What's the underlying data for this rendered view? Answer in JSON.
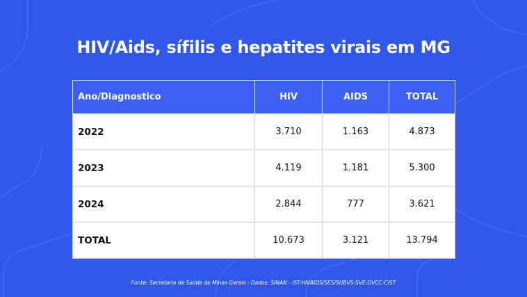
{
  "title": "HIV/Aids, sífilis e hepatites virais em MG",
  "colors": {
    "background": "#2f57ea",
    "header": "#3d60f2",
    "cell": "#ffffff",
    "decoration": "#4a6df0"
  },
  "table": {
    "headers": [
      "Ano/Diagnostico",
      "HIV",
      "AIDS",
      "TOTAL"
    ],
    "rows": [
      {
        "label": "2022",
        "hiv": "3.710",
        "aids": "1.163",
        "total": "4.873"
      },
      {
        "label": "2023",
        "hiv": "4.119",
        "aids": "1.181",
        "total": "5.300"
      },
      {
        "label": "2024",
        "hiv": "2.844",
        "aids": "777",
        "total": "3.621"
      },
      {
        "label": "TOTAL",
        "hiv": "10.673",
        "aids": "3.121",
        "total": "13.794"
      }
    ]
  },
  "source": "Fonte: Secretaria de Saúde de Minas Gerais - Dados: SINAN - IST-HIVAIDS/SES/SUBVS-SVE-DVCC-CIST"
}
